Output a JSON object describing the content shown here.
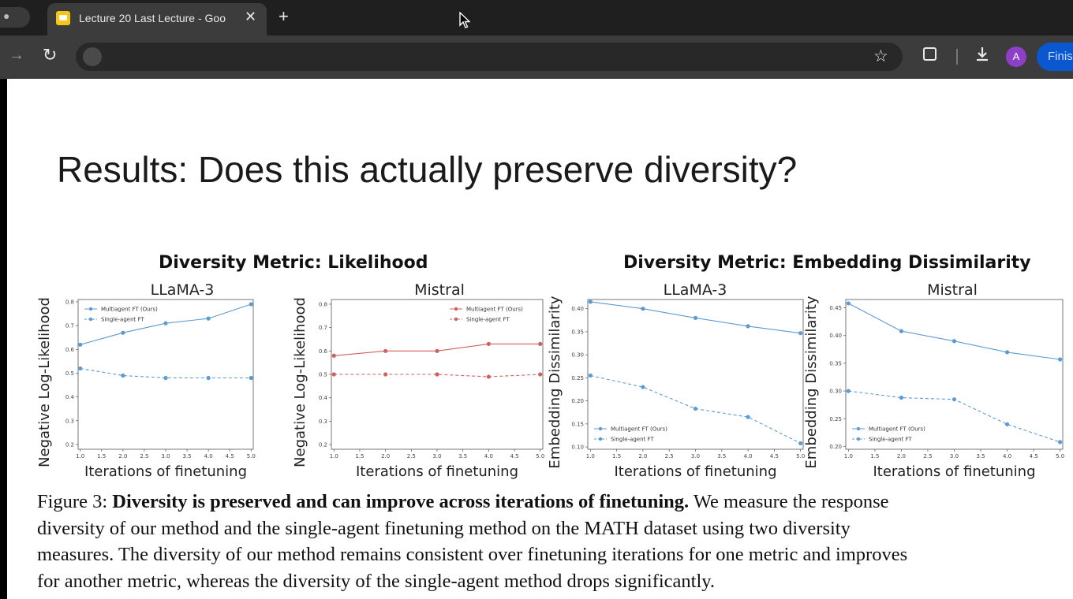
{
  "browser": {
    "tab_title": "Lecture 20 Last Lecture - Goo",
    "profile_initial": "A",
    "finish_label": "Finis",
    "icons": [
      "close-icon",
      "new-tab-icon",
      "forward-icon",
      "reload-icon",
      "site-info-icon",
      "star-icon",
      "extensions-icon",
      "download-icon",
      "cursor-icon"
    ],
    "accent": "#0b57d0",
    "avatar_color": "#8e3fc7"
  },
  "slide": {
    "title": "Results: Does this actually preserve diversity?",
    "group_titles": [
      "Diversity Metric: Likelihood",
      "Diversity Metric: Embedding Dissimilarity"
    ],
    "caption_label": "Figure 3: ",
    "caption_bold": "Diversity is preserved and can improve across iterations of finetuning.",
    "caption_line1": " We measure the response",
    "caption_line2": "diversity of our method and the single-agent finetuning method on the MATH dataset using two diversity",
    "caption_line3": "measures. The diversity of our method remains consistent over finetuning iterations for one metric and improves",
    "caption_line4": "for another metric, whereas the diversity of the single-agent method drops significantly."
  },
  "chart_data": [
    {
      "type": "line",
      "title": "LLaMA-3",
      "xlabel": "Iterations of finetuning",
      "ylabel": "Negative Log-Likelihood",
      "x": [
        1.0,
        2.0,
        3.0,
        4.0,
        5.0
      ],
      "xticks": [
        "1.0",
        "1.5",
        "2.0",
        "2.5",
        "3.0",
        "3.5",
        "4.0",
        "4.5",
        "5.0"
      ],
      "xlim": [
        0.95,
        5.05
      ],
      "ylim": [
        0.18,
        0.81
      ],
      "yticks": [
        "0.2",
        "0.3",
        "0.4",
        "0.5",
        "0.6",
        "0.7",
        "0.8"
      ],
      "color": "#5b9bd5",
      "legend_position": "top-left",
      "series": [
        {
          "name": "Multiagent FT (Ours)",
          "style": "solid",
          "values": [
            0.62,
            0.67,
            0.71,
            0.73,
            0.79
          ]
        },
        {
          "name": "Single-agent FT",
          "style": "dashed",
          "values": [
            0.52,
            0.49,
            0.48,
            0.48,
            0.48
          ]
        }
      ]
    },
    {
      "type": "line",
      "title": "Mistral",
      "xlabel": "Iterations of finetuning",
      "ylabel": "Negative Log-Likelihood",
      "x": [
        1.0,
        2.0,
        3.0,
        4.0,
        5.0
      ],
      "xticks": [
        "1.0",
        "1.5",
        "2.0",
        "2.5",
        "3.0",
        "3.5",
        "4.0",
        "4.5",
        "5.0"
      ],
      "xlim": [
        0.95,
        5.05
      ],
      "ylim": [
        0.18,
        0.82
      ],
      "yticks": [
        "0.2",
        "0.3",
        "0.4",
        "0.5",
        "0.6",
        "0.7",
        "0.8"
      ],
      "color": "#d0605e",
      "legend_position": "top-right",
      "series": [
        {
          "name": "Multiagent FT (Ours)",
          "style": "solid",
          "values": [
            0.58,
            0.6,
            0.6,
            0.63,
            0.63
          ]
        },
        {
          "name": "Single-agent FT",
          "style": "dashed",
          "values": [
            0.5,
            0.5,
            0.5,
            0.49,
            0.5
          ]
        }
      ]
    },
    {
      "type": "line",
      "title": "LLaMA-3",
      "xlabel": "Iterations of finetuning",
      "ylabel": "Embedding Dissimilarity",
      "x": [
        1.0,
        2.0,
        3.0,
        4.0,
        5.0
      ],
      "xticks": [
        "1.0",
        "1.5",
        "2.0",
        "2.5",
        "3.0",
        "3.5",
        "4.0",
        "4.5",
        "5.0"
      ],
      "xlim": [
        0.95,
        5.05
      ],
      "ylim": [
        0.095,
        0.42
      ],
      "yticks": [
        "0.10",
        "0.15",
        "0.20",
        "0.25",
        "0.30",
        "0.35",
        "0.40"
      ],
      "color": "#5b9bd5",
      "legend_position": "bottom-left",
      "series": [
        {
          "name": "Multiagent FT (Ours)",
          "style": "solid",
          "values": [
            0.415,
            0.4,
            0.38,
            0.362,
            0.347
          ]
        },
        {
          "name": "Single-agent FT",
          "style": "dashed",
          "values": [
            0.255,
            0.23,
            0.183,
            0.165,
            0.108
          ]
        }
      ]
    },
    {
      "type": "line",
      "title": "Mistral",
      "xlabel": "Iterations of finetuning",
      "ylabel": "Embedding Dissimilarity",
      "x": [
        1.0,
        2.0,
        3.0,
        4.0,
        5.0
      ],
      "xticks": [
        "1.0",
        "1.5",
        "2.0",
        "2.5",
        "3.0",
        "3.5",
        "4.0",
        "4.5",
        "5.0"
      ],
      "xlim": [
        0.95,
        5.05
      ],
      "ylim": [
        0.195,
        0.465
      ],
      "yticks": [
        "0.20",
        "0.25",
        "0.30",
        "0.35",
        "0.40",
        "0.45"
      ],
      "color": "#5b9bd5",
      "legend_position": "bottom-left",
      "series": [
        {
          "name": "Multiagent FT (Ours)",
          "style": "solid",
          "values": [
            0.458,
            0.408,
            0.39,
            0.37,
            0.357
          ]
        },
        {
          "name": "Single-agent FT",
          "style": "dashed",
          "values": [
            0.3,
            0.288,
            0.285,
            0.24,
            0.208
          ]
        }
      ]
    }
  ]
}
